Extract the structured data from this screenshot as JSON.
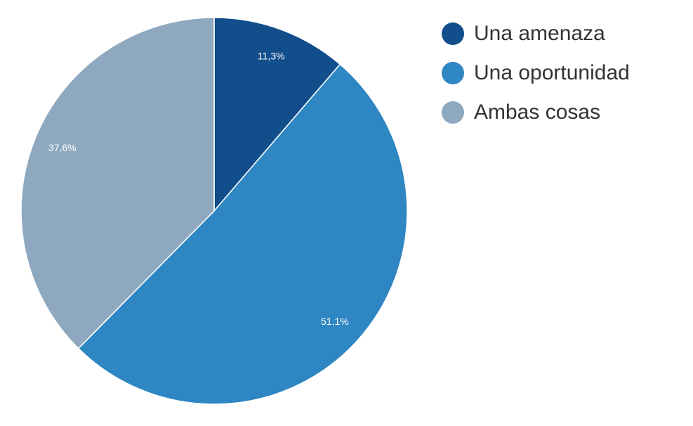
{
  "chart_data": {
    "type": "pie",
    "categories": [
      "Una amenaza",
      "Una oportunidad",
      "Ambas cosas"
    ],
    "values": [
      11.3,
      51.1,
      37.6
    ],
    "value_labels": [
      "11,3%",
      "51,1%",
      "37,6%"
    ],
    "colors": [
      "#114e8b",
      "#2e86c2",
      "#8ea9bf"
    ],
    "legend": "right"
  }
}
